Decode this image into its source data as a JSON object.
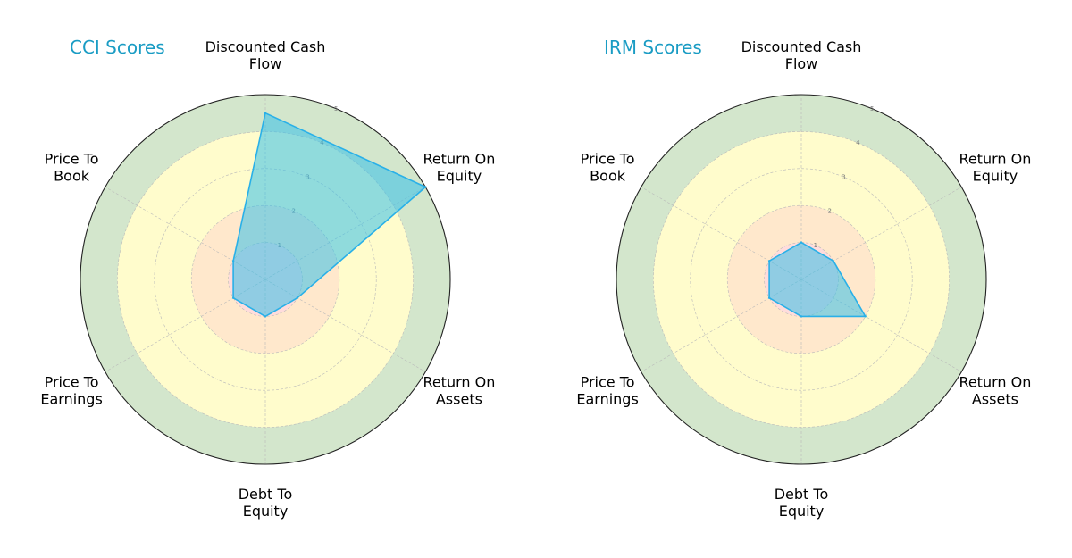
{
  "colors": {
    "title": "#1a9cc4",
    "series_line": "#29b0e8",
    "series_fill": "#34c0ea",
    "band_1": "#ffdcdc",
    "band_2": "#ffe8cc",
    "band_3": "#fffccc",
    "band_4": "#fffccc",
    "band_5": "#d3e6cc",
    "outline": "#222222",
    "grid": "#b9b9b9"
  },
  "chart_data": [
    {
      "type": "radar",
      "title": "CCI Scores",
      "axes": [
        [
          "Discounted Cash",
          "Flow"
        ],
        [
          "Return On",
          "Equity"
        ],
        [
          "Return On",
          "Assets"
        ],
        [
          "Debt To",
          "Equity"
        ],
        [
          "Price To",
          "Earnings"
        ],
        [
          "Price To",
          "Book"
        ]
      ],
      "rlim": [
        0,
        5
      ],
      "rticks": [
        "1",
        "2",
        "3",
        "4",
        "5"
      ],
      "grid": true,
      "series": [
        {
          "values": [
            4.5,
            5.0,
            1.0,
            1.0,
            1.0,
            1.0
          ]
        }
      ]
    },
    {
      "type": "radar",
      "title": "IRM Scores",
      "axes": [
        [
          "Discounted Cash",
          "Flow"
        ],
        [
          "Return On",
          "Equity"
        ],
        [
          "Return On",
          "Assets"
        ],
        [
          "Debt To",
          "Equity"
        ],
        [
          "Price To",
          "Earnings"
        ],
        [
          "Price To",
          "Book"
        ]
      ],
      "rlim": [
        0,
        5
      ],
      "rticks": [
        "1",
        "2",
        "3",
        "4",
        "5"
      ],
      "grid": true,
      "series": [
        {
          "values": [
            1.0,
            1.0,
            2.0,
            1.0,
            1.0,
            1.0
          ]
        }
      ]
    }
  ]
}
